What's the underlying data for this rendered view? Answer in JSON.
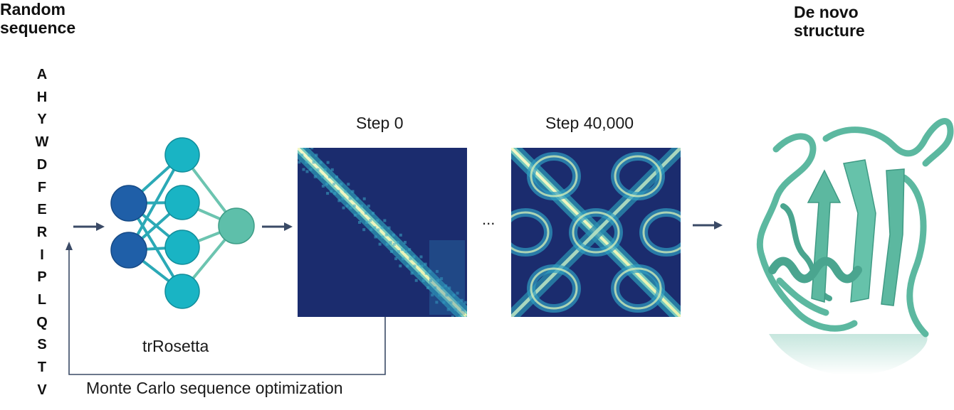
{
  "headings": {
    "random_sequence": [
      "Random",
      "sequence"
    ],
    "de_novo_structure": [
      "De novo",
      "structure"
    ]
  },
  "sequence": [
    "A",
    "H",
    "Y",
    "W",
    "D",
    "F",
    "E",
    "R",
    "I",
    "P",
    "L",
    "Q",
    "S",
    "T",
    "V"
  ],
  "network": {
    "label": "trRosetta",
    "colors": {
      "input": "#1f5fa8",
      "hidden": "#19b4c4",
      "output": "#5ebfaa",
      "edge": "#2ba9b6"
    }
  },
  "maps": [
    {
      "label": "Step 0"
    },
    {
      "label": "Step 40,000"
    }
  ],
  "ellipsis": "...",
  "loop_label": "Monte Carlo sequence optimization",
  "colors": {
    "arrow": "#3a4a66",
    "map_bg": "#1b2c6e",
    "protein": "#5cb8a0"
  }
}
